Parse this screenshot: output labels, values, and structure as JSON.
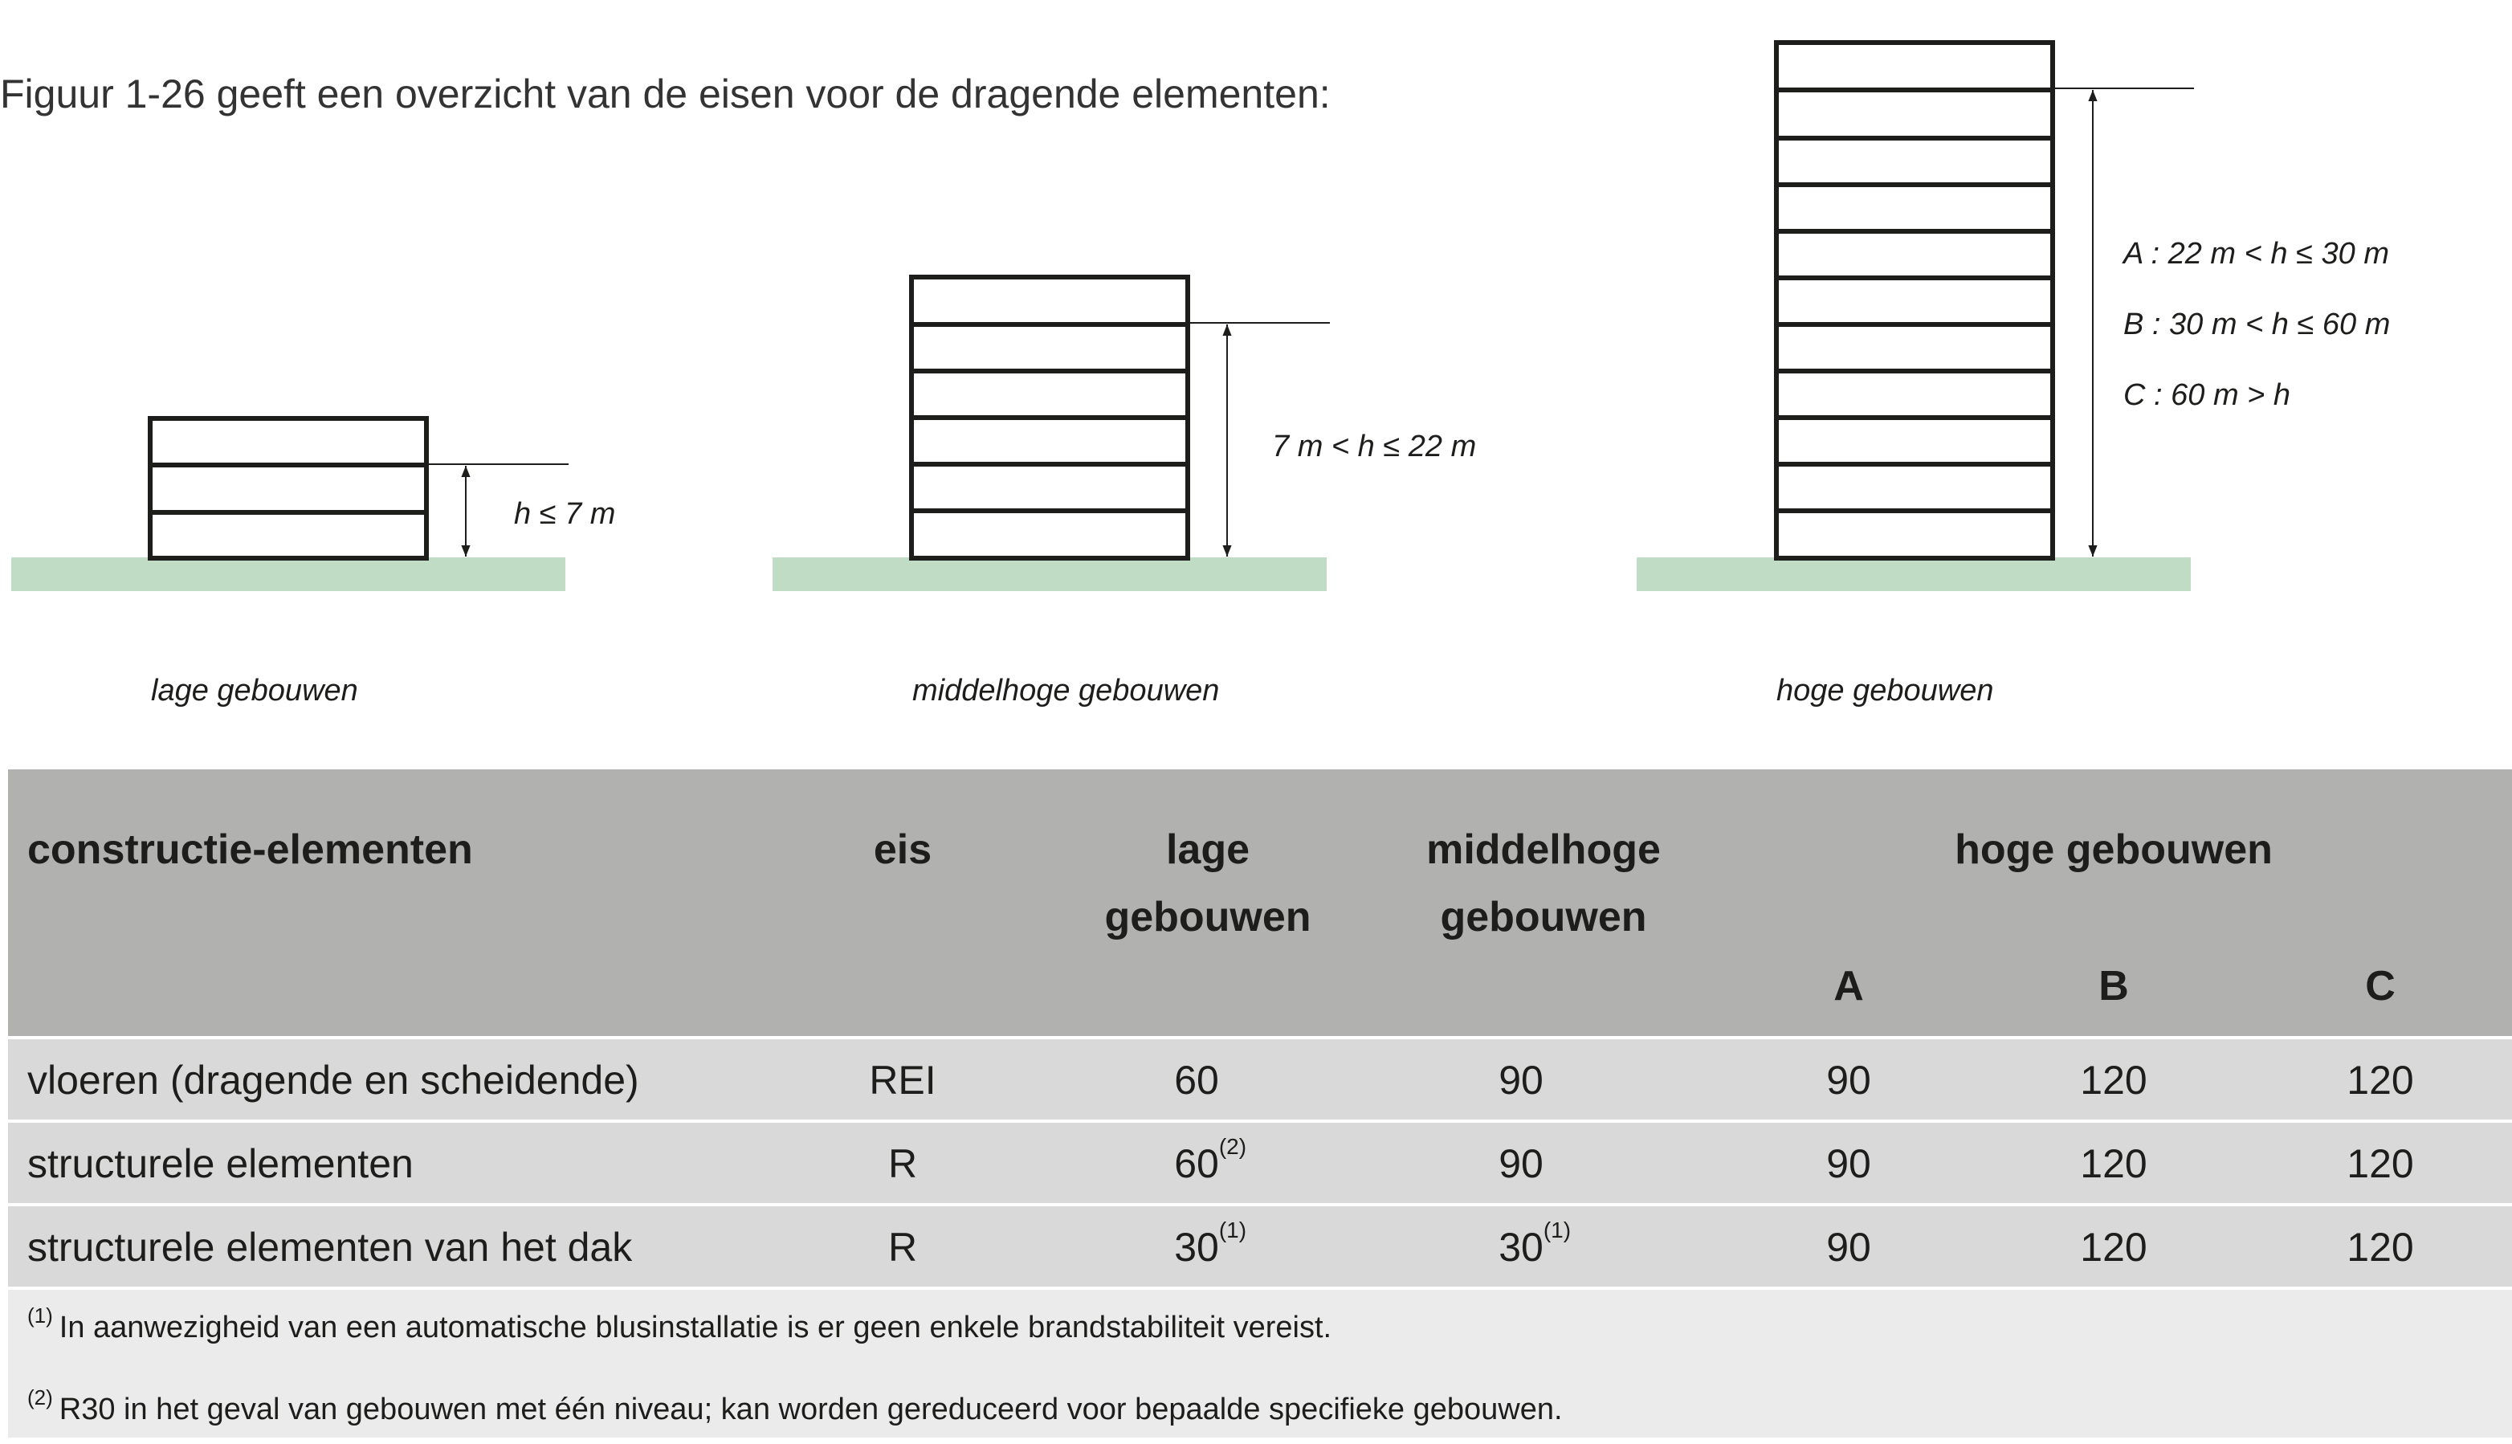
{
  "intro": "Figuur 1-26 geeft een overzicht van de eisen voor de dragende elementen:",
  "diagram": {
    "colors": {
      "ground": "#c1dcc4",
      "building": "#1d1d1b"
    },
    "buildings": [
      {
        "caption": "lage gebouwen",
        "labels": [
          "h ≤ 7 m"
        ]
      },
      {
        "caption": "middelhoge gebouwen",
        "labels": [
          "7 m  < h ≤ 22 m"
        ]
      },
      {
        "caption": "hoge gebouwen",
        "labels": [
          "A : 22 m  < h ≤ 30 m",
          "B : 30 m  < h ≤ 60 m",
          "C : 60 m  > h"
        ]
      }
    ]
  },
  "table": {
    "colors": {
      "header": "#b1b1b0",
      "row": "#d9d9d9",
      "notes": "#ebebeb"
    },
    "headers": {
      "element": "constructie-elementen",
      "eis": "eis",
      "lage_1": "lage",
      "lage_2": "gebouwen",
      "middel_1": "middelhoge",
      "middel_2": "gebouwen",
      "hoge": "hoge gebouwen",
      "a": "A",
      "b": "B",
      "c": "C"
    },
    "rows": [
      {
        "element": "vloeren (dragende en scheidende)",
        "eis": "REI",
        "lage": "60",
        "lage_note": "",
        "middel": "90",
        "middel_note": "",
        "a": "90",
        "b": "120",
        "c": "120"
      },
      {
        "element": "structurele elementen",
        "eis": "R",
        "lage": "60",
        "lage_note": "(2)",
        "middel": "90",
        "middel_note": "",
        "a": "90",
        "b": "120",
        "c": "120"
      },
      {
        "element": "structurele elementen van het dak",
        "eis": "R",
        "lage": "30",
        "lage_note": "(1)",
        "middel": "30",
        "middel_note": "(1)",
        "a": "90",
        "b": "120",
        "c": "120"
      }
    ],
    "footnotes": [
      {
        "mark": "(1)",
        "text": "In aanwezigheid van een automatische blusinstallatie is er geen enkele brandstabiliteit vereist."
      },
      {
        "mark": "(2)",
        "text": "R30 in het geval van gebouwen met één niveau; kan worden gereduceerd voor bepaalde specifieke gebouwen."
      }
    ]
  }
}
